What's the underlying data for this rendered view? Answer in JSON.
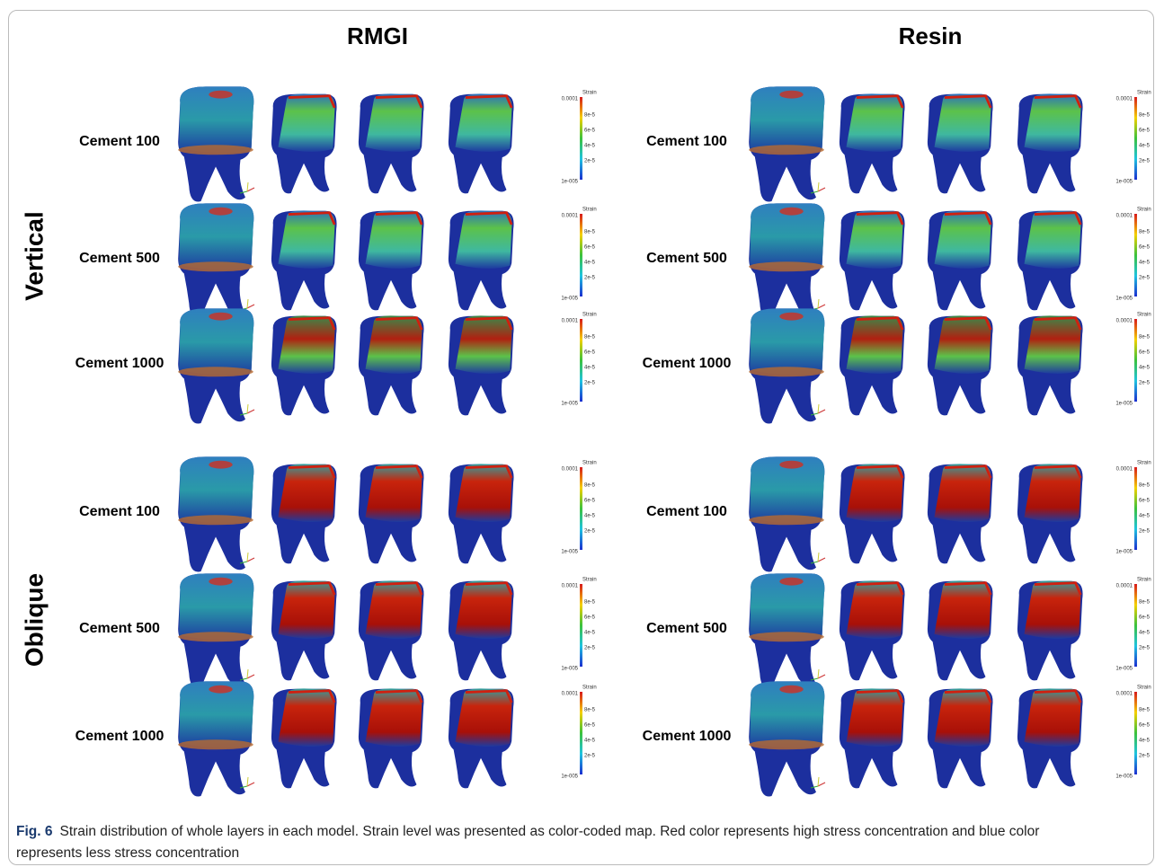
{
  "columns": [
    "RMGI",
    "Resin"
  ],
  "groups": [
    {
      "label": "Vertical",
      "rows": [
        "Cement 100",
        "Cement 500",
        "Cement 1000"
      ]
    },
    {
      "label": "Oblique",
      "rows": [
        "Cement 100",
        "Cement 500",
        "Cement 1000"
      ]
    }
  ],
  "colorbar": {
    "title": "Strain",
    "max_label": "0.0001",
    "min_label": "1e-005",
    "ticks": [
      "8e-5",
      "6e-5",
      "4e-5",
      "2e-5"
    ]
  },
  "caption": {
    "label": "Fig. 6",
    "text": "Strain distribution of whole layers in each model. Strain level was presented as color-coded map. Red color represents high stress concentration and blue color represents less stress concentration"
  }
}
